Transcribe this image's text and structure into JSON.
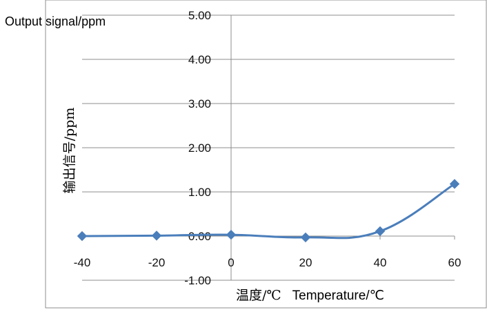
{
  "chart_data": {
    "type": "line",
    "title": "",
    "corner_label": "Output signal/ppm",
    "ylabel": "输出信号/ppm",
    "xlabel_cn": "温度/℃",
    "xlabel_en": "Temperature/℃",
    "x": [
      -40,
      -20,
      0,
      20,
      40,
      60
    ],
    "series": [
      {
        "values": [
          0.0,
          0.01,
          0.03,
          -0.03,
          0.11,
          1.18
        ],
        "color": "#4a7ebb"
      }
    ],
    "xlim": [
      -40,
      60
    ],
    "ylim": [
      -1.0,
      5.0
    ],
    "x_ticks": [
      "-40",
      "-20",
      "0",
      "20",
      "40",
      "60"
    ],
    "y_ticks": [
      "-1.00",
      "0.00",
      "1.00",
      "2.00",
      "3.00",
      "4.00",
      "5.00"
    ],
    "grid": "horizontal",
    "legend": "none",
    "marker": "diamond",
    "smooth": true
  }
}
